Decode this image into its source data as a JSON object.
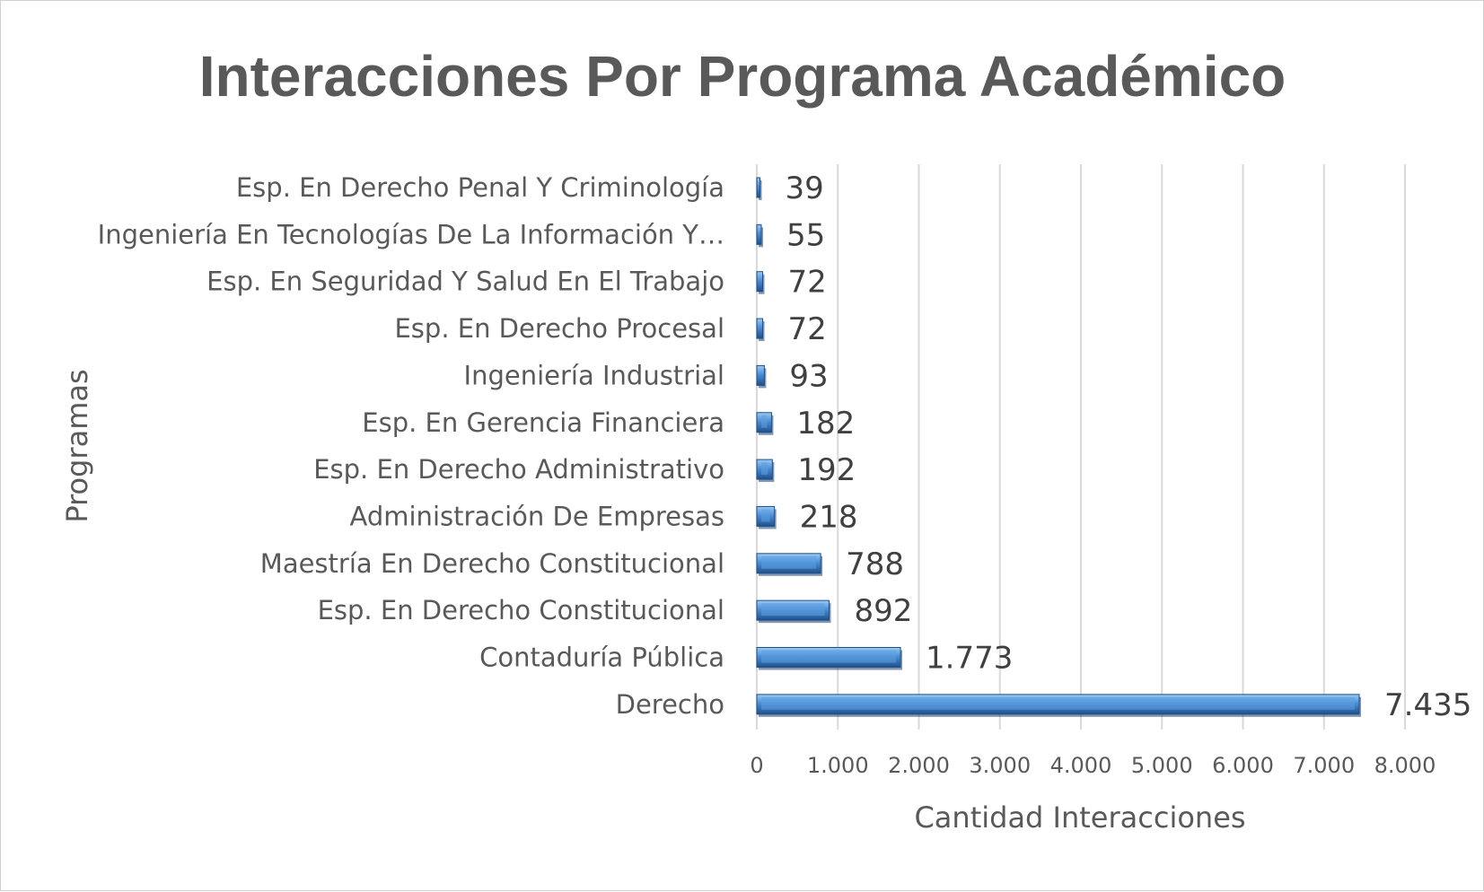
{
  "chart_data": {
    "type": "bar",
    "orientation": "horizontal",
    "title": "Interacciones Por Programa Académico",
    "xlabel": "Cantidad Interacciones",
    "ylabel": "Programas",
    "xlim": [
      0,
      8000
    ],
    "xticks": [
      0,
      1000,
      2000,
      3000,
      4000,
      5000,
      6000,
      7000,
      8000
    ],
    "xtick_labels": [
      "0",
      "1.000",
      "2.000",
      "3.000",
      "4.000",
      "5.000",
      "6.000",
      "7.000",
      "8.000"
    ],
    "grid": true,
    "legend": "none",
    "categories": [
      "Esp. En Derecho Penal Y Criminología",
      "Ingeniería En Tecnologías De La Información Y…",
      "Esp. En Seguridad Y Salud En El Trabajo",
      "Esp. En Derecho Procesal",
      "Ingeniería Industrial",
      "Esp. En Gerencia Financiera",
      "Esp. En Derecho Administrativo",
      "Administración De Empresas",
      "Maestría En Derecho Constitucional",
      "Esp. En Derecho Constitucional",
      "Contaduría Pública",
      "Derecho"
    ],
    "values": [
      39,
      55,
      72,
      72,
      93,
      182,
      192,
      218,
      788,
      892,
      1773,
      7435
    ],
    "data_labels": [
      "39",
      "55",
      "72",
      "72",
      "93",
      "182",
      "192",
      "218",
      "788",
      "892",
      "1.773",
      "7.435"
    ],
    "bar_color": "#3f7fc4"
  }
}
